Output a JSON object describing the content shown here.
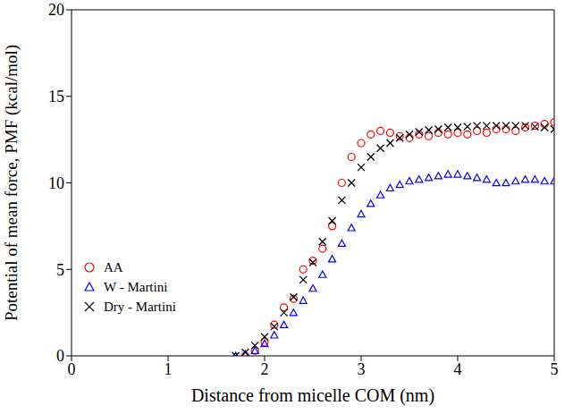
{
  "chart_data": {
    "type": "scatter",
    "x_label": "Distance from micelle COM (nm)",
    "y_label": "Potential of mean force, PMF (kcal/mol)",
    "xlim": [
      0,
      5
    ],
    "xticks": [
      0,
      1,
      2,
      3,
      4,
      5
    ],
    "ylim": [
      0,
      20
    ],
    "yticks": [
      0,
      5,
      10,
      15,
      20
    ],
    "grid": false,
    "legend": "lower left",
    "x": [
      1.7,
      1.8,
      1.9,
      2.0,
      2.1,
      2.2,
      2.3,
      2.4,
      2.5,
      2.6,
      2.7,
      2.8,
      2.9,
      3.0,
      3.1,
      3.2,
      3.3,
      3.4,
      3.5,
      3.6,
      3.7,
      3.8,
      3.9,
      4.0,
      4.1,
      4.2,
      4.3,
      4.4,
      4.5,
      4.6,
      4.7,
      4.8,
      4.9,
      5.0
    ],
    "series": [
      {
        "name": "AA",
        "color": "#ff0000",
        "marker": "circle",
        "values": [
          null,
          0,
          0.3,
          0.8,
          1.8,
          2.8,
          3.3,
          5,
          5.5,
          6.2,
          7.5,
          10,
          11.5,
          12.3,
          12.8,
          13,
          12.9,
          12.7,
          12.6,
          12.8,
          12.7,
          12.9,
          12.8,
          12.9,
          12.8,
          13,
          12.9,
          13.1,
          13.1,
          13,
          13.2,
          13.3,
          13.4,
          13.5
        ]
      },
      {
        "name": "W - Martini",
        "color": "#0000ff",
        "marker": "triangle",
        "values": [
          0,
          0.1,
          0.3,
          0.7,
          1.2,
          1.8,
          2.5,
          3.2,
          3.9,
          4.7,
          5.6,
          6.5,
          7.4,
          8.2,
          8.8,
          9.3,
          9.7,
          9.9,
          10.1,
          10.2,
          10.3,
          10.4,
          10.5,
          10.5,
          10.4,
          10.3,
          10.2,
          10,
          10,
          10.1,
          10.2,
          10.2,
          10.1,
          10.1
        ]
      },
      {
        "name": "Dry - Martini",
        "color": "#000000",
        "marker": "x",
        "values": [
          0,
          0.2,
          0.6,
          1.1,
          1.7,
          2.5,
          3.4,
          4.4,
          5.4,
          6.6,
          7.8,
          9,
          10,
          10.9,
          11.5,
          12,
          12.3,
          12.6,
          12.8,
          12.95,
          13.05,
          13.1,
          13.2,
          13.2,
          13.25,
          13.3,
          13.3,
          13.3,
          13.3,
          13.3,
          13.3,
          13.25,
          13.2,
          13.1
        ]
      }
    ]
  }
}
